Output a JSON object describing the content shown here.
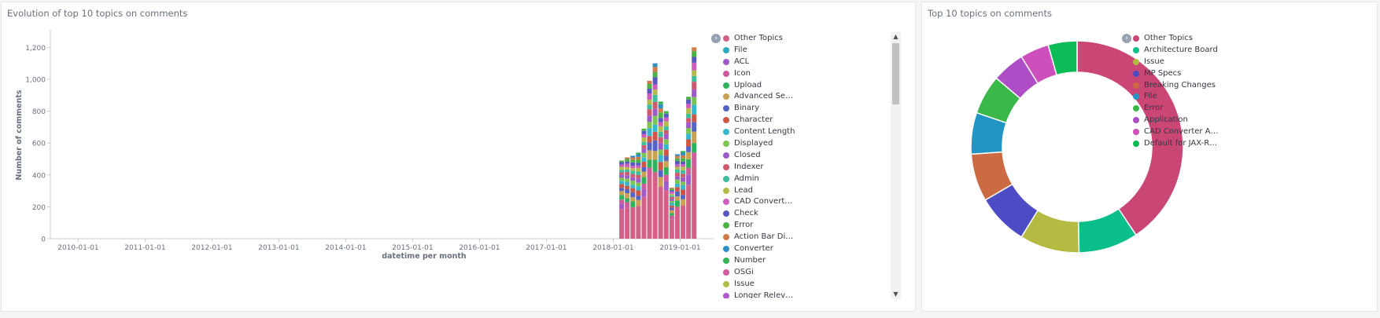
{
  "left_panel": {
    "title": "Evolution of top 10 topics on comments"
  },
  "right_panel": {
    "title": "Top 10 topics on comments"
  },
  "icons": {
    "legend_toggle": "chevron-right-icon",
    "scroll_up": "arrow-up-icon",
    "scroll_down": "arrow-down-icon",
    "legend_toggle_glyph": "›",
    "scroll_up_glyph": "▲",
    "scroll_down_glyph": "▼"
  },
  "chart_data": [
    {
      "type": "bar",
      "stacked": true,
      "xlabel": "datetime per month",
      "ylabel": "Number of comments",
      "ylim": [
        0,
        1300
      ],
      "y_ticks": [
        0,
        200,
        400,
        600,
        800,
        1000,
        1200
      ],
      "y_tick_labels": [
        "0",
        "200",
        "400",
        "600",
        "800",
        "1,000",
        "1,200"
      ],
      "x_ticks": [
        "2010-01-01",
        "2011-01-01",
        "2012-01-01",
        "2013-01-01",
        "2014-01-01",
        "2015-01-01",
        "2016-01-01",
        "2017-01-01",
        "2018-01-01",
        "2019-01-01"
      ],
      "xlim": [
        "2009-08-01",
        "2019-07-01"
      ],
      "grid": false,
      "legend_position": "right",
      "legend": [
        {
          "name": "Other Topics",
          "color": "#d36086"
        },
        {
          "name": "File",
          "color": "#28a9c2"
        },
        {
          "name": "ACL",
          "color": "#a05bc7"
        },
        {
          "name": "Icon",
          "color": "#d05a9b"
        },
        {
          "name": "Upload",
          "color": "#30b25c"
        },
        {
          "name": "Advanced Search",
          "color": "#caa052"
        },
        {
          "name": "Binary",
          "color": "#5463c4"
        },
        {
          "name": "Character",
          "color": "#cf5545"
        },
        {
          "name": "Content Length",
          "color": "#36b7cf"
        },
        {
          "name": "Displayed",
          "color": "#7ac551"
        },
        {
          "name": "Closed",
          "color": "#9e5ac8"
        },
        {
          "name": "Indexer",
          "color": "#d0596e"
        },
        {
          "name": "Admin",
          "color": "#3cbd9c"
        },
        {
          "name": "Lead",
          "color": "#b3bb4b"
        },
        {
          "name": "CAD Converter Ab...",
          "color": "#cf5bbd"
        },
        {
          "name": "Check",
          "color": "#5758c2"
        },
        {
          "name": "Error",
          "color": "#4ab344"
        },
        {
          "name": "Action Bar Disapp...",
          "color": "#cf7a48"
        },
        {
          "name": "Converter",
          "color": "#2f8ec4"
        },
        {
          "name": "Number",
          "color": "#37b257"
        },
        {
          "name": "OSGi",
          "color": "#d35a9e"
        },
        {
          "name": "Issue",
          "color": "#b4bc4c"
        },
        {
          "name": "Longer Relevant",
          "color": "#b05ad0"
        }
      ],
      "bars": [
        {
          "date": "2018-02",
          "total": 490
        },
        {
          "date": "2018-03",
          "total": 510
        },
        {
          "date": "2018-04",
          "total": 520
        },
        {
          "date": "2018-05",
          "total": 540
        },
        {
          "date": "2018-06",
          "total": 690
        },
        {
          "date": "2018-07",
          "total": 990
        },
        {
          "date": "2018-08",
          "total": 1100
        },
        {
          "date": "2018-09",
          "total": 860
        },
        {
          "date": "2018-10",
          "total": 800
        },
        {
          "date": "2018-11",
          "total": 320
        },
        {
          "date": "2018-12",
          "total": 530
        },
        {
          "date": "2019-01",
          "total": 550
        },
        {
          "date": "2019-02",
          "total": 890
        },
        {
          "date": "2019-03",
          "total": 1200
        }
      ],
      "stack_share": [
        0.38,
        0.07,
        0.05,
        0.06,
        0.05,
        0.04,
        0.05,
        0.04,
        0.04,
        0.04,
        0.03,
        0.03,
        0.04,
        0.03,
        0.03,
        0.02
      ]
    },
    {
      "type": "pie",
      "donut": true,
      "legend_position": "right",
      "slices": [
        {
          "name": "Other Topics",
          "value": 42.5,
          "color": "#ca4675"
        },
        {
          "name": "Architecture Board",
          "value": 9.5,
          "color": "#0abf8a"
        },
        {
          "name": "Issue",
          "value": 9.5,
          "color": "#b5ba42"
        },
        {
          "name": "MP Specs",
          "value": 8.2,
          "color": "#4d4cc4"
        },
        {
          "name": "Breaking Changes",
          "value": 7.6,
          "color": "#cb6a43"
        },
        {
          "name": "File",
          "value": 6.6,
          "color": "#2295c4"
        },
        {
          "name": "Error",
          "value": 6.3,
          "color": "#3ab84a"
        },
        {
          "name": "Application",
          "value": 5.2,
          "color": "#ad4ec6"
        },
        {
          "name": "CAD Converter Able t...",
          "value": 4.6,
          "color": "#cc4fbb"
        },
        {
          "name": "Default for JAX-RS Re...",
          "value": 4.6,
          "color": "#0dbb57"
        }
      ]
    }
  ]
}
